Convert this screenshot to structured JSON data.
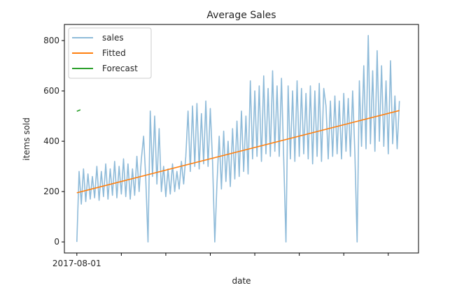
{
  "chart_data": {
    "type": "line",
    "title": "Average Sales",
    "xlabel": "date",
    "ylabel": "items sold",
    "x_unit": "days since 2017-08-01",
    "xlim": [
      -28,
      768
    ],
    "ylim": [
      -44,
      864
    ],
    "yticks": [
      0,
      200,
      400,
      600,
      800
    ],
    "xticks": [
      0,
      100,
      200,
      300,
      400,
      500,
      600,
      700
    ],
    "xtick_labels": [
      "2017-08-01",
      "",
      "",
      "",
      "",
      "",
      "",
      ""
    ],
    "grid": false,
    "legend": {
      "placement": "top-left",
      "entries": [
        "sales",
        "Fitted",
        "Forecast"
      ]
    },
    "series": [
      {
        "name": "sales",
        "color": "#1f77b4",
        "alpha": 0.5,
        "x_start": 0,
        "x_step": 5,
        "values": [
          0,
          280,
          150,
          290,
          160,
          270,
          170,
          260,
          175,
          300,
          165,
          280,
          180,
          310,
          170,
          290,
          185,
          320,
          175,
          300,
          190,
          330,
          180,
          310,
          170,
          290,
          185,
          340,
          200,
          330,
          420,
          250,
          0,
          520,
          260,
          500,
          230,
          450,
          200,
          300,
          180,
          290,
          190,
          310,
          200,
          280,
          210,
          320,
          230,
          340,
          520,
          280,
          540,
          300,
          550,
          290,
          510,
          310,
          560,
          300,
          530,
          320,
          0,
          230,
          420,
          210,
          440,
          240,
          400,
          220,
          450,
          250,
          480,
          260,
          520,
          280,
          500,
          270,
          640,
          330,
          600,
          340,
          620,
          320,
          660,
          350,
          610,
          340,
          680,
          360,
          620,
          340,
          650,
          330,
          0,
          620,
          330,
          600,
          320,
          640,
          340,
          610,
          350,
          590,
          330,
          620,
          310,
          600,
          340,
          630,
          320,
          610,
          540,
          330,
          560,
          340,
          580,
          350,
          560,
          330,
          590,
          360,
          570,
          340,
          600,
          350,
          0,
          640,
          380,
          700,
          370,
          820,
          390,
          680,
          360,
          760,
          400,
          700,
          380,
          640,
          350,
          720,
          390,
          580,
          370,
          560
        ]
      },
      {
        "name": "Fitted",
        "color": "#ff7f0e",
        "x": [
          0,
          725
        ],
        "values": [
          195,
          522
        ]
      },
      {
        "name": "Forecast",
        "color": "#2ca02c",
        "x": [
          0,
          8
        ],
        "values": [
          519,
          525
        ]
      }
    ]
  }
}
